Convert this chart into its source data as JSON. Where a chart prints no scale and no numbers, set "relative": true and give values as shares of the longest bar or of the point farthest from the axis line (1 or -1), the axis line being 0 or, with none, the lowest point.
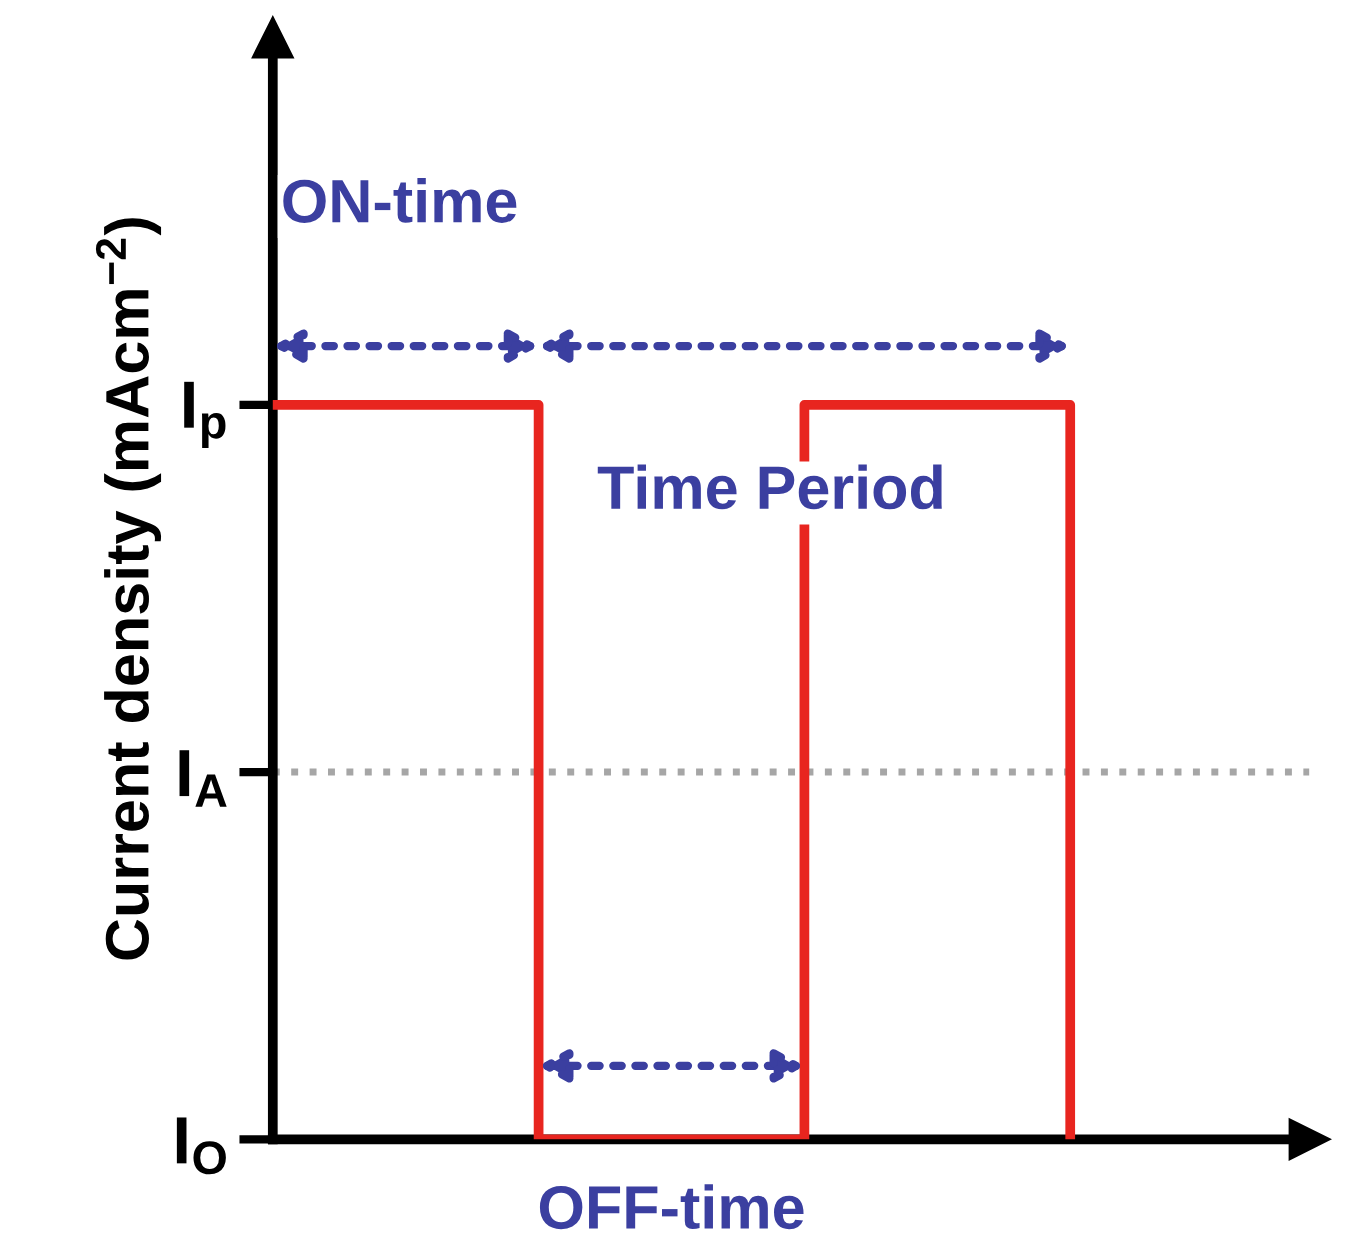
{
  "chart_data": {
    "type": "step",
    "relative": true,
    "ylabel": "Current density (mAcm$^{−2}$)",
    "categories": [
      null,
      null,
      null,
      null
    ],
    "series": [
      {
        "color": "#e8251f",
        "values": [
          1,
          0,
          1,
          0
        ]
      }
    ],
    "tick_labels": "y",
    "ref_lines": [
      {
        "axis": "y",
        "value": 0.5,
        "label": null,
        "color": "#a6a6a6",
        "line_style": "dotted"
      }
    ],
    "annotations": [
      "I$_{p}$",
      "I$_{A}$",
      "I$_{O}$",
      "ON-time",
      "Time Period",
      "OFF-time"
    ],
    "grid": false,
    "legend": false,
    "marker": "none",
    "line_style": "solid"
  }
}
